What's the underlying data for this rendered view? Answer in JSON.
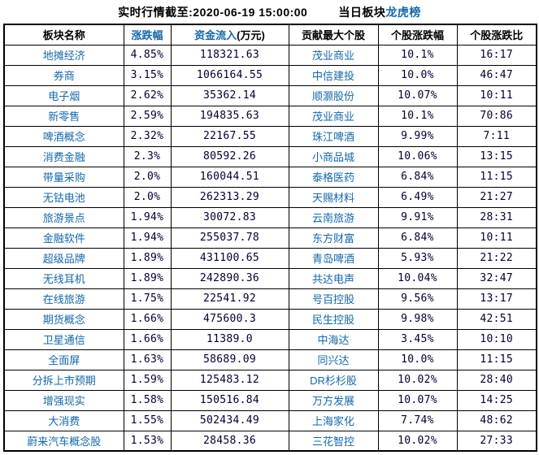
{
  "header": {
    "realtime_caption": "实时行情截至:2020-06-19 15:00:00",
    "board_prefix": "当日板块",
    "board_link_label": "龙虎榜"
  },
  "colors": {
    "link_blue": "#1567A8",
    "number_navy": "#000033",
    "border_black": "#000000",
    "background": "#ffffff"
  },
  "table": {
    "columns": [
      {
        "label": "板块名称",
        "link": false,
        "suffix": ""
      },
      {
        "label": "涨跌幅",
        "link": true,
        "suffix": ""
      },
      {
        "label": "资金流入",
        "link": true,
        "suffix": "(万元)"
      },
      {
        "label": "贡献最大个股",
        "link": false,
        "suffix": ""
      },
      {
        "label": "个股涨跌幅",
        "link": false,
        "suffix": ""
      },
      {
        "label": "个股涨跌比",
        "link": false,
        "suffix": ""
      }
    ],
    "rows": [
      {
        "sector": "地摊经济",
        "change": "4.85%",
        "inflow": "118321.63",
        "stock": "茂业商业",
        "stock_change": "10.1%",
        "ratio": "16:17"
      },
      {
        "sector": "券商",
        "change": "3.15%",
        "inflow": "1066164.55",
        "stock": "中信建投",
        "stock_change": "10.0%",
        "ratio": "46:47"
      },
      {
        "sector": "电子烟",
        "change": "2.62%",
        "inflow": "35362.14",
        "stock": "顺灏股份",
        "stock_change": "10.07%",
        "ratio": "10:11"
      },
      {
        "sector": "新零售",
        "change": "2.59%",
        "inflow": "194835.63",
        "stock": "茂业商业",
        "stock_change": "10.1%",
        "ratio": "70:86"
      },
      {
        "sector": "啤酒概念",
        "change": "2.32%",
        "inflow": "22167.55",
        "stock": "珠江啤酒",
        "stock_change": "9.99%",
        "ratio": "7:11"
      },
      {
        "sector": "消费金融",
        "change": "2.3%",
        "inflow": "80592.26",
        "stock": "小商品城",
        "stock_change": "10.06%",
        "ratio": "13:15"
      },
      {
        "sector": "带量采购",
        "change": "2.0%",
        "inflow": "160044.51",
        "stock": "泰格医药",
        "stock_change": "6.84%",
        "ratio": "11:15"
      },
      {
        "sector": "无钴电池",
        "change": "2.0%",
        "inflow": "262313.29",
        "stock": "天赐材料",
        "stock_change": "6.49%",
        "ratio": "21:27"
      },
      {
        "sector": "旅游景点",
        "change": "1.94%",
        "inflow": "30072.83",
        "stock": "云南旅游",
        "stock_change": "9.91%",
        "ratio": "28:31"
      },
      {
        "sector": "金融软件",
        "change": "1.94%",
        "inflow": "255037.78",
        "stock": "东方财富",
        "stock_change": "6.84%",
        "ratio": "10:11"
      },
      {
        "sector": "超级品牌",
        "change": "1.89%",
        "inflow": "431100.65",
        "stock": "青岛啤酒",
        "stock_change": "5.93%",
        "ratio": "21:22"
      },
      {
        "sector": "无线耳机",
        "change": "1.89%",
        "inflow": "242890.36",
        "stock": "共达电声",
        "stock_change": "10.04%",
        "ratio": "32:47"
      },
      {
        "sector": "在线旅游",
        "change": "1.75%",
        "inflow": "22541.92",
        "stock": "号百控股",
        "stock_change": "9.56%",
        "ratio": "13:17"
      },
      {
        "sector": "期货概念",
        "change": "1.66%",
        "inflow": "475600.3",
        "stock": "民生控股",
        "stock_change": "9.98%",
        "ratio": "42:51"
      },
      {
        "sector": "卫星通信",
        "change": "1.66%",
        "inflow": "11389.0",
        "stock": "中海达",
        "stock_change": "3.45%",
        "ratio": "10:10"
      },
      {
        "sector": "全面屏",
        "change": "1.63%",
        "inflow": "58689.09",
        "stock": "同兴达",
        "stock_change": "10.0%",
        "ratio": "11:15"
      },
      {
        "sector": "分拆上市预期",
        "change": "1.59%",
        "inflow": "125483.12",
        "stock": "DR杉杉股",
        "stock_change": "10.02%",
        "ratio": "28:40"
      },
      {
        "sector": "增强现实",
        "change": "1.58%",
        "inflow": "150516.84",
        "stock": "万方发展",
        "stock_change": "10.07%",
        "ratio": "14:25"
      },
      {
        "sector": "大消费",
        "change": "1.55%",
        "inflow": "502434.49",
        "stock": "上海家化",
        "stock_change": "7.74%",
        "ratio": "48:62"
      },
      {
        "sector": "蔚来汽车概念股",
        "change": "1.53%",
        "inflow": "28458.36",
        "stock": "三花智控",
        "stock_change": "10.02%",
        "ratio": "27:33"
      }
    ]
  }
}
